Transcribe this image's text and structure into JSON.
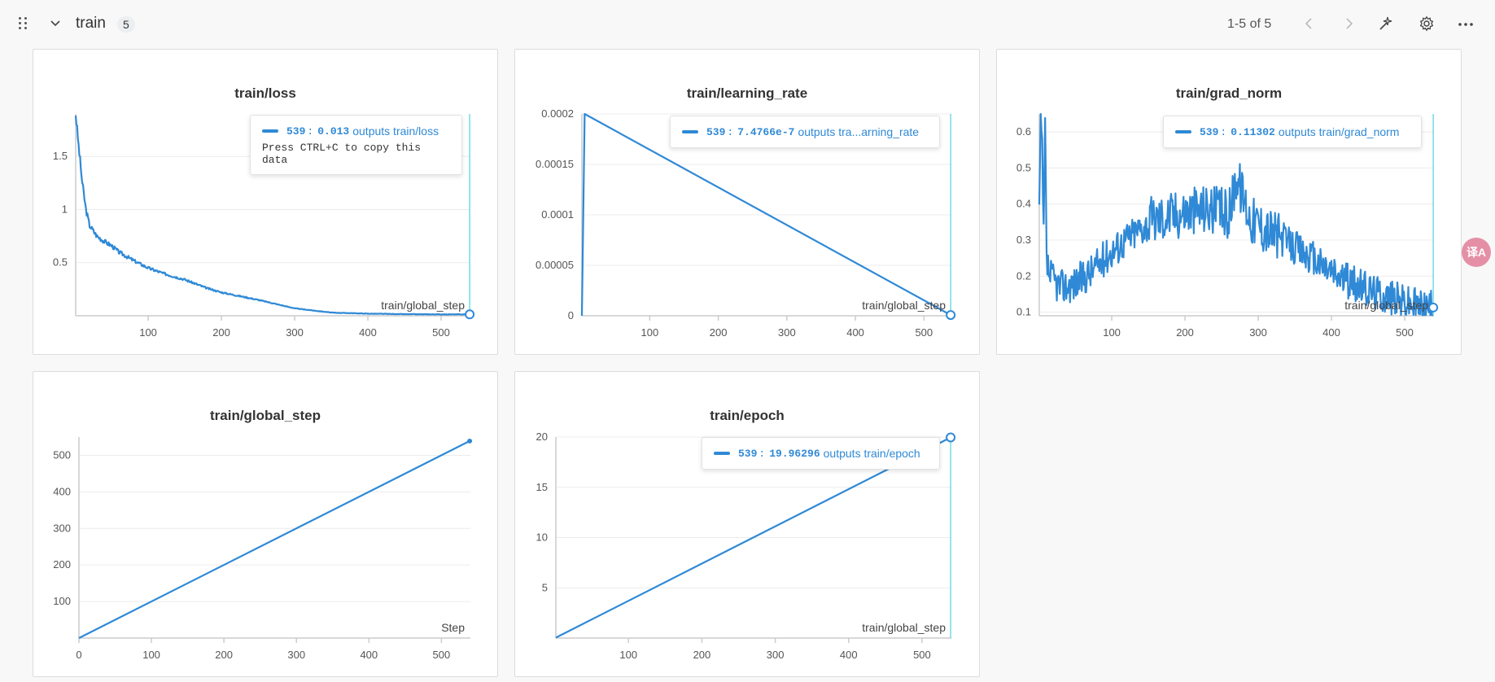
{
  "section": {
    "title": "train",
    "count": "5"
  },
  "pager": {
    "range_text": "1-5 of 5"
  },
  "toolbar_icons": [
    "drag-handle-icon",
    "chevron-down-icon",
    "chevron-left-icon",
    "chevron-right-icon",
    "magic-wand-icon",
    "gear-icon",
    "more-icon"
  ],
  "translate_icon": "译A",
  "colors": {
    "series": "#2f89d6",
    "cursor": "#4fd1e0"
  },
  "panels": {
    "loss": {
      "title": "train/loss",
      "x_label": "train/global_step",
      "tooltip": {
        "step": "539",
        "sep": ":",
        "value": "0.013",
        "label": "outputs train/loss",
        "hint": "Press CTRL+C to copy this data"
      }
    },
    "lr": {
      "title": "train/learning_rate",
      "x_label": "train/global_step",
      "tooltip": {
        "step": "539",
        "sep": ":",
        "value": "7.4766e-7",
        "label": "outputs tra...arning_rate"
      }
    },
    "grad": {
      "title": "train/grad_norm",
      "x_label": "train/global_step",
      "tooltip": {
        "step": "539",
        "sep": ":",
        "value": "0.11302",
        "label": "outputs train/grad_norm"
      }
    },
    "gstep": {
      "title": "train/global_step",
      "x_label": "Step"
    },
    "epoch": {
      "title": "train/epoch",
      "x_label": "train/global_step",
      "tooltip": {
        "step": "539",
        "sep": ":",
        "value": "19.96296",
        "label": "outputs train/epoch"
      }
    }
  },
  "chart_data": [
    {
      "type": "line",
      "title": "train/loss",
      "xlabel": "train/global_step",
      "xlim": [
        1,
        540
      ],
      "ylim": [
        0,
        1.9
      ],
      "x_ticks": [
        100,
        200,
        300,
        400,
        500
      ],
      "y_ticks": [
        0.5,
        1,
        1.5
      ],
      "x_tick_labels": [
        "100",
        "200",
        "300",
        "400",
        "500"
      ],
      "y_tick_labels": [
        "0.5",
        "1",
        "1.5"
      ],
      "series": [
        {
          "name": "train/loss",
          "x": [
            1,
            5,
            10,
            15,
            20,
            30,
            40,
            50,
            60,
            80,
            100,
            120,
            150,
            180,
            200,
            250,
            300,
            350,
            400,
            450,
            500,
            539
          ],
          "y": [
            1.9,
            1.6,
            1.25,
            1.0,
            0.85,
            0.75,
            0.7,
            0.66,
            0.6,
            0.52,
            0.45,
            0.4,
            0.34,
            0.26,
            0.22,
            0.15,
            0.07,
            0.03,
            0.02,
            0.015,
            0.013,
            0.013
          ]
        }
      ],
      "cursor_x": 539,
      "grid": true
    },
    {
      "type": "line",
      "title": "train/learning_rate",
      "xlabel": "train/global_step",
      "xlim": [
        1,
        540
      ],
      "ylim": [
        0,
        0.0002
      ],
      "x_ticks": [
        100,
        200,
        300,
        400,
        500
      ],
      "y_ticks": [
        0,
        5e-05,
        0.0001,
        0.00015,
        0.0002
      ],
      "x_tick_labels": [
        "100",
        "200",
        "300",
        "400",
        "500"
      ],
      "y_tick_labels": [
        "0",
        "0.00005",
        "0.0001",
        "0.00015",
        "0.0002"
      ],
      "series": [
        {
          "name": "train/learning_rate",
          "x": [
            1,
            5,
            539
          ],
          "y": [
            0,
            0.0002,
            7.4766e-07
          ]
        }
      ],
      "cursor_x": 539,
      "grid": true
    },
    {
      "type": "line",
      "title": "train/grad_norm",
      "xlabel": "train/global_step",
      "xlim": [
        1,
        540
      ],
      "ylim": [
        0.09,
        0.65
      ],
      "x_ticks": [
        100,
        200,
        300,
        400,
        500
      ],
      "y_ticks": [
        0.1,
        0.2,
        0.3,
        0.4,
        0.5,
        0.6
      ],
      "x_tick_labels": [
        "100",
        "200",
        "300",
        "400",
        "500"
      ],
      "y_tick_labels": [
        "0.1",
        "0.2",
        "0.3",
        "0.4",
        "0.5",
        "0.6"
      ],
      "series": [
        {
          "name": "train/grad_norm",
          "x": [
            1,
            3,
            5,
            7,
            9,
            11,
            15,
            20,
            30,
            50,
            70,
            100,
            130,
            160,
            200,
            230,
            260,
            270,
            290,
            320,
            350,
            380,
            410,
            440,
            470,
            500,
            520,
            539
          ],
          "y": [
            0.38,
            0.62,
            0.55,
            0.3,
            0.62,
            0.24,
            0.2,
            0.19,
            0.17,
            0.18,
            0.21,
            0.27,
            0.32,
            0.36,
            0.38,
            0.39,
            0.37,
            0.48,
            0.36,
            0.32,
            0.28,
            0.24,
            0.2,
            0.17,
            0.15,
            0.13,
            0.12,
            0.113
          ]
        }
      ],
      "cursor_x": 539,
      "grid": true
    },
    {
      "type": "line",
      "title": "train/global_step",
      "xlabel": "Step",
      "xlim": [
        0,
        540
      ],
      "ylim": [
        0,
        550
      ],
      "x_ticks": [
        0,
        100,
        200,
        300,
        400,
        500
      ],
      "y_ticks": [
        100,
        200,
        300,
        400,
        500
      ],
      "x_tick_labels": [
        "0",
        "100",
        "200",
        "300",
        "400",
        "500"
      ],
      "y_tick_labels": [
        "100",
        "200",
        "300",
        "400",
        "500"
      ],
      "series": [
        {
          "name": "train/global_step",
          "x": [
            0,
            539
          ],
          "y": [
            0,
            539
          ]
        }
      ],
      "grid": true
    },
    {
      "type": "line",
      "title": "train/epoch",
      "xlabel": "train/global_step",
      "xlim": [
        1,
        540
      ],
      "ylim": [
        0,
        20
      ],
      "x_ticks": [
        100,
        200,
        300,
        400,
        500
      ],
      "y_ticks": [
        5,
        10,
        15,
        20
      ],
      "x_tick_labels": [
        "100",
        "200",
        "300",
        "400",
        "500"
      ],
      "y_tick_labels": [
        "5",
        "10",
        "15",
        "20"
      ],
      "series": [
        {
          "name": "train/epoch",
          "x": [
            1,
            539
          ],
          "y": [
            0.037,
            19.96296
          ]
        }
      ],
      "cursor_x": 539,
      "grid": true
    }
  ]
}
